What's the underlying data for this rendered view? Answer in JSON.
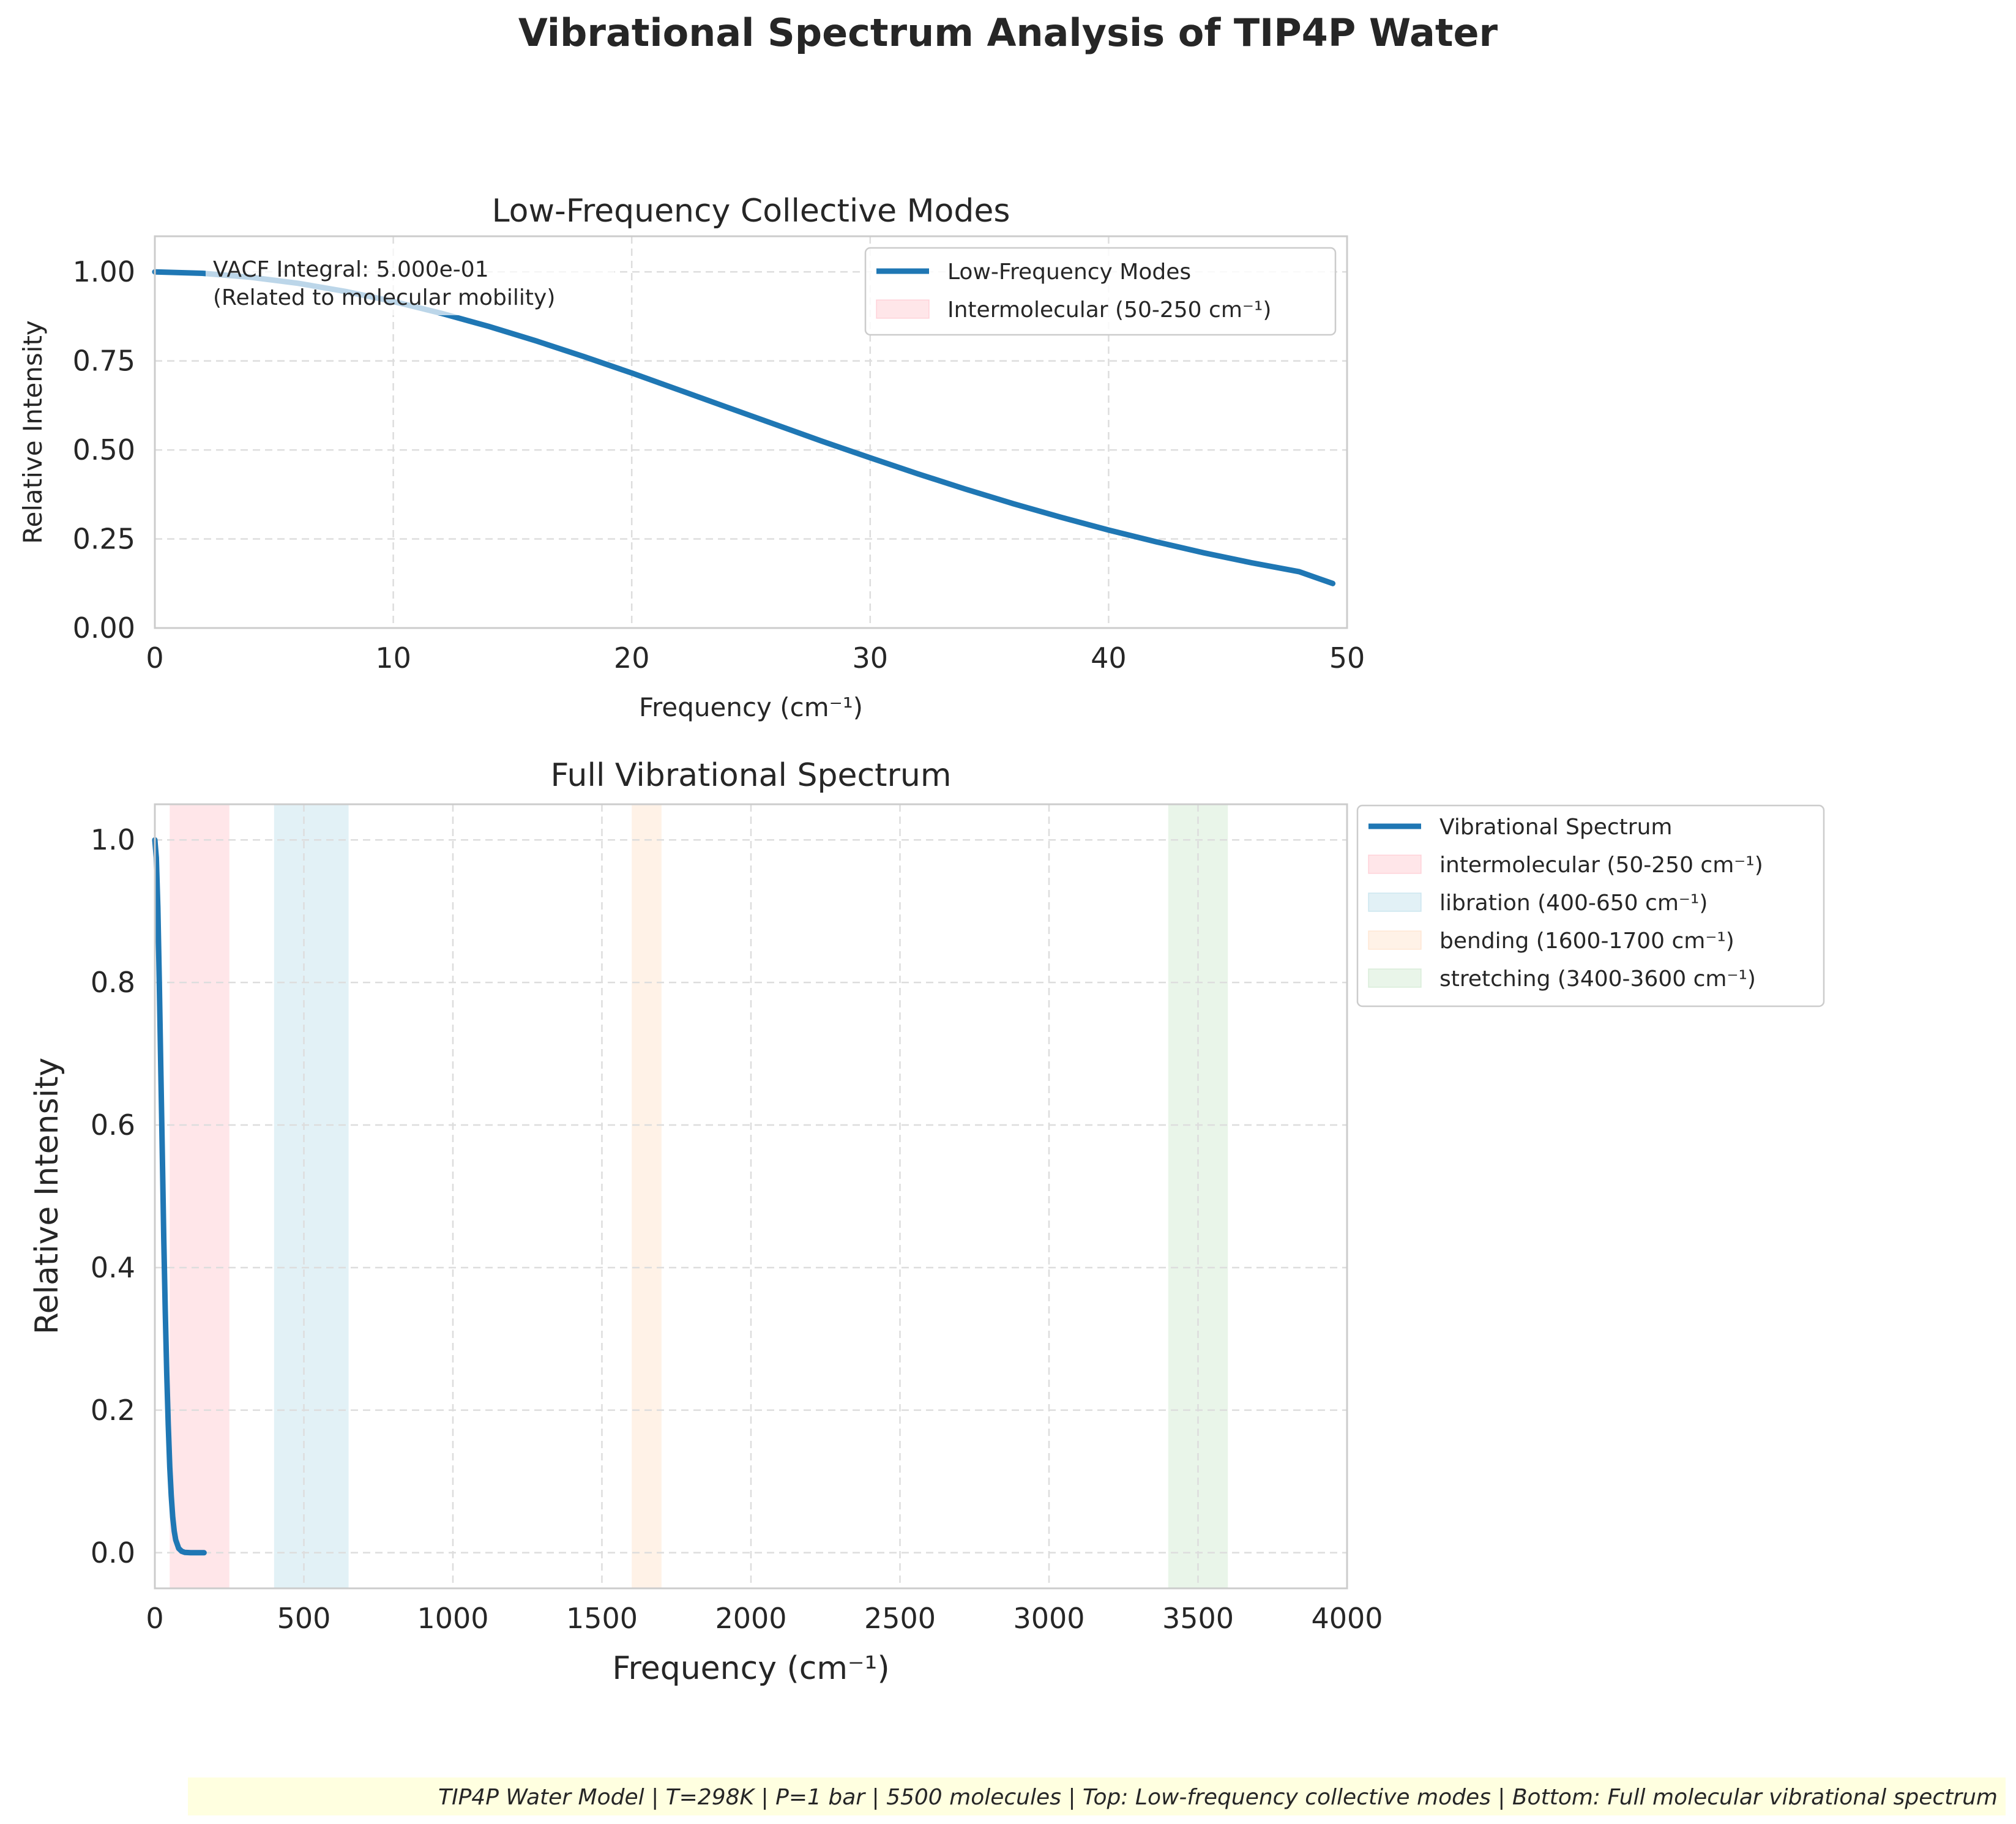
{
  "title": "Vibrational Spectrum Analysis of TIP4P Water",
  "footer": "TIP4P Water Model | T=298K | P=1 bar | 5500 molecules | Top: Low-frequency collective modes | Bottom: Full molecular vibrational spectrum",
  "colors": {
    "line": "#1f77b4",
    "intermolecular": "#ffb6c1",
    "libration": "#add8e6",
    "bending": "#ffdab9",
    "stretching": "#c1e1c1"
  },
  "chart_data": [
    {
      "type": "line",
      "title": "Low-Frequency Collective Modes",
      "xlabel": "Frequency (cm⁻¹)",
      "ylabel": "Relative Intensity",
      "xlim": [
        0,
        50
      ],
      "ylim": [
        0,
        1.1
      ],
      "xticks": [
        "0",
        "10",
        "20",
        "30",
        "40",
        "50"
      ],
      "yticks": [
        "0.00",
        "0.25",
        "0.50",
        "0.75",
        "1.00"
      ],
      "grid": true,
      "legend_position": "upper right",
      "annotation": "VACF Integral: 5.000e-01\n(Related to molecular mobility)",
      "series": [
        {
          "name": "Low-Frequency Modes",
          "x": [
            0,
            2,
            4,
            6,
            8,
            10,
            12,
            14,
            16,
            18,
            20,
            22,
            24,
            26,
            28,
            30,
            32,
            34,
            36,
            38,
            40,
            42,
            44,
            46,
            48,
            49.4
          ],
          "y": [
            1.0,
            0.996,
            0.985,
            0.968,
            0.945,
            0.917,
            0.884,
            0.847,
            0.806,
            0.762,
            0.716,
            0.668,
            0.62,
            0.572,
            0.524,
            0.478,
            0.433,
            0.39,
            0.349,
            0.311,
            0.275,
            0.242,
            0.211,
            0.183,
            0.158,
            0.125
          ]
        }
      ],
      "bands": [
        {
          "name": "Intermolecular (50-250 cm⁻¹)",
          "range": [
            50,
            250
          ],
          "color_key": "intermolecular"
        }
      ]
    },
    {
      "type": "line",
      "title": "Full Vibrational Spectrum",
      "xlabel": "Frequency (cm⁻¹)",
      "ylabel": "Relative Intensity",
      "xlim": [
        0,
        4000
      ],
      "ylim": [
        -0.05,
        1.05
      ],
      "xticks": [
        "0",
        "500",
        "1000",
        "1500",
        "2000",
        "2500",
        "3000",
        "3500",
        "4000"
      ],
      "yticks": [
        "0.0",
        "0.2",
        "0.4",
        "0.6",
        "0.8",
        "1.0"
      ],
      "grid": true,
      "legend_position": "outside upper right",
      "series": [
        {
          "name": "Vibrational Spectrum",
          "x": [
            0,
            5,
            10,
            15,
            20,
            25,
            30,
            35,
            40,
            45,
            50,
            55,
            60,
            65,
            70,
            80,
            90,
            100,
            120,
            140,
            165
          ],
          "y": [
            1.0,
            0.975,
            0.905,
            0.8,
            0.68,
            0.56,
            0.44,
            0.34,
            0.25,
            0.18,
            0.12,
            0.08,
            0.05,
            0.03,
            0.018,
            0.006,
            0.002,
            0.0005,
            0.0,
            0.0,
            0.0
          ]
        }
      ],
      "bands": [
        {
          "name": "intermolecular (50-250 cm⁻¹)",
          "range": [
            50,
            250
          ],
          "color_key": "intermolecular"
        },
        {
          "name": "libration (400-650 cm⁻¹)",
          "range": [
            400,
            650
          ],
          "color_key": "libration"
        },
        {
          "name": "bending (1600-1700 cm⁻¹)",
          "range": [
            1600,
            1700
          ],
          "color_key": "bending"
        },
        {
          "name": "stretching (3400-3600 cm⁻¹)",
          "range": [
            3400,
            3600
          ],
          "color_key": "stretching"
        }
      ]
    }
  ]
}
